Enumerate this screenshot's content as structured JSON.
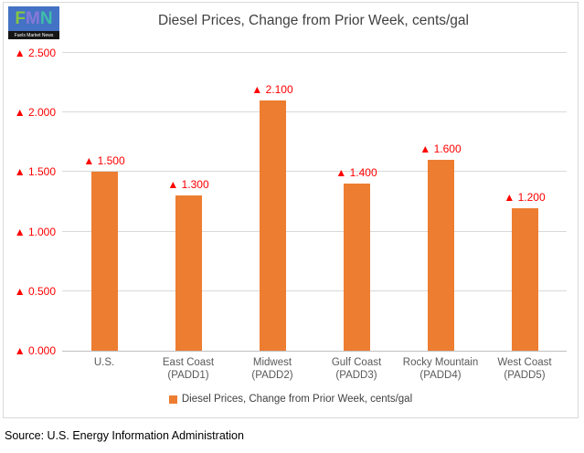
{
  "logo": {
    "letters": [
      "F",
      "M",
      "N"
    ],
    "letter_colors": [
      "#86C543",
      "#8678D9",
      "#3FBFA9"
    ],
    "background": "#4472C4",
    "caption": "Fuels Market News"
  },
  "chart_data": {
    "type": "bar",
    "title": "Diesel Prices, Change from Prior Week, cents/gal",
    "categories": [
      "U.S.",
      "East Coast (PADD1)",
      "Midwest (PADD2)",
      "Gulf Coast (PADD3)",
      "Rocky Mountain (PADD4)",
      "West Coast (PADD5)"
    ],
    "values": [
      1.5,
      1.3,
      2.1,
      1.4,
      1.6,
      1.2
    ],
    "data_labels": [
      "▲ 1.500",
      "▲ 1.300",
      "▲ 2.100",
      "▲ 1.400",
      "▲ 1.600",
      "▲ 1.200"
    ],
    "ytick_values": [
      0,
      0.5,
      1,
      1.5,
      2,
      2.5
    ],
    "ytick_labels": [
      "▲ 0.000",
      "▲ 0.500",
      "▲ 1.000",
      "▲ 1.500",
      "▲ 2.000",
      "▲ 2.500"
    ],
    "ylim": [
      0,
      2.5
    ],
    "grid": true,
    "legend": "Diesel Prices, Change from Prior Week, cents/gal",
    "legend_position": "bottom",
    "bar_color": "#ED7D31",
    "label_color": "#FF0000",
    "xlabel": "",
    "ylabel": ""
  },
  "footer": {
    "source": "Source: U.S. Energy Information Administration"
  }
}
